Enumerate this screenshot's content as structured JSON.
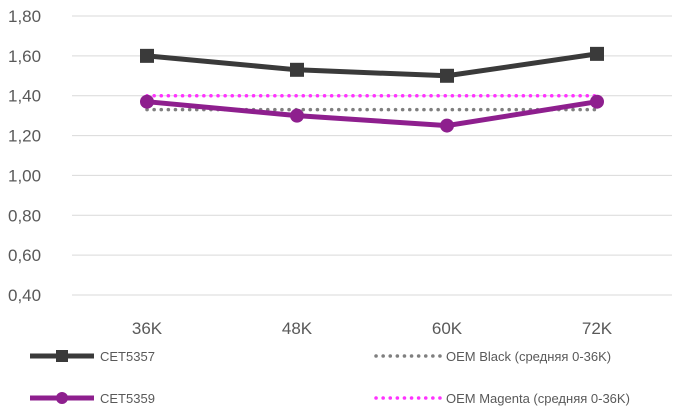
{
  "chart_data": {
    "type": "line",
    "categories": [
      "36K",
      "48K",
      "60K",
      "72K"
    ],
    "ylim": [
      0.4,
      1.8
    ],
    "yticks": [
      "0,40",
      "0,60",
      "0,80",
      "1,00",
      "1,20",
      "1,40",
      "1,60",
      "1,80"
    ],
    "ytick_values": [
      0.4,
      0.6,
      0.8,
      1.0,
      1.2,
      1.4,
      1.6,
      1.8
    ],
    "grid": true,
    "legend_position": "bottom",
    "series": [
      {
        "name": "CET5357",
        "values": [
          1.6,
          1.53,
          1.5,
          1.61
        ],
        "color": "#3a3a3a",
        "style": "solid",
        "marker": "square"
      },
      {
        "name": "CET5359",
        "values": [
          1.37,
          1.3,
          1.25,
          1.37
        ],
        "color": "#8e1f8e",
        "style": "solid",
        "marker": "circle"
      },
      {
        "name": "OEM Black (средняя 0-36K)",
        "values": [
          1.33,
          1.33,
          1.33,
          1.33
        ],
        "color": "#7f7f7f",
        "style": "dotted",
        "marker": "none"
      },
      {
        "name": "OEM Magenta (средняя 0-36K)",
        "values": [
          1.4,
          1.4,
          1.4,
          1.4
        ],
        "color": "#ff33ff",
        "style": "dotted",
        "marker": "none"
      }
    ]
  }
}
